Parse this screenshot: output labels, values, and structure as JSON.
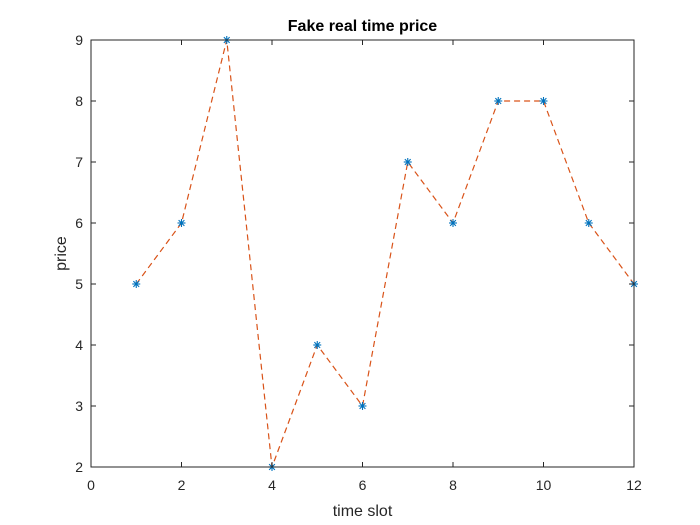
{
  "chart_data": {
    "type": "line",
    "title": "Fake real time price",
    "xlabel": "time slot",
    "ylabel": "price",
    "xlim": [
      0,
      12
    ],
    "ylim": [
      2,
      9
    ],
    "xticks": [
      0,
      2,
      4,
      6,
      8,
      10,
      12
    ],
    "yticks": [
      2,
      3,
      4,
      5,
      6,
      7,
      8,
      9
    ],
    "grid": false,
    "series": [
      {
        "x": [
          1,
          2,
          3,
          4,
          5,
          6,
          7,
          8,
          9,
          10,
          11,
          12
        ],
        "y": [
          5,
          6,
          9,
          2,
          4,
          3,
          7,
          6,
          8,
          8,
          6,
          5
        ],
        "line_color": "#D95319",
        "line_style": "dashed",
        "marker": "asterisk",
        "marker_color": "#0072BD"
      }
    ]
  }
}
